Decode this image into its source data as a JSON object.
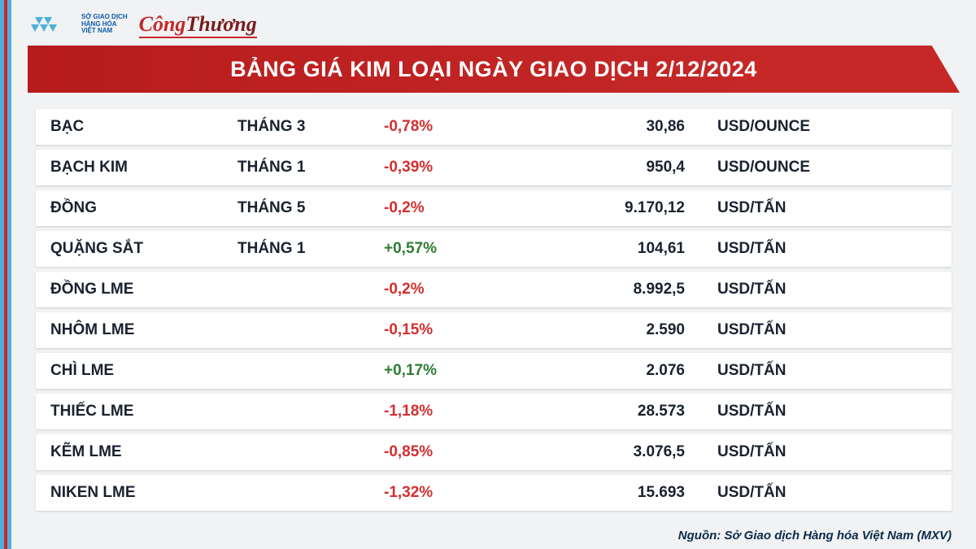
{
  "logos": {
    "mxv_lines": [
      "SỞ GIAO DỊCH",
      "HÀNG HÓA",
      "VIỆT NAM"
    ],
    "congthuong_part1": "Công",
    "congthuong_part2": "Thương"
  },
  "title": "BẢNG GIÁ KIM LOẠI NGÀY GIAO DỊCH 2/12/2024",
  "columns": [
    "name",
    "month",
    "change",
    "price",
    "unit"
  ],
  "colors": {
    "banner": "#c62828",
    "positive": "#2e7d32",
    "negative": "#d32f2f",
    "text": "#1a2230",
    "row_bg": "#ffffff",
    "page_bg": "#f0f2f4"
  },
  "rows": [
    {
      "name": "BẠC",
      "month": "THÁNG 3",
      "change": "-0,78%",
      "dir": "neg",
      "price": "30,86",
      "unit": "USD/OUNCE"
    },
    {
      "name": "BẠCH KIM",
      "month": "THÁNG 1",
      "change": "-0,39%",
      "dir": "neg",
      "price": "950,4",
      "unit": "USD/OUNCE"
    },
    {
      "name": "ĐỒNG",
      "month": "THÁNG 5",
      "change": "-0,2%",
      "dir": "neg",
      "price": "9.170,12",
      "unit": "USD/TẤN"
    },
    {
      "name": "QUẶNG SẮT",
      "month": "THÁNG 1",
      "change": "+0,57%",
      "dir": "pos",
      "price": "104,61",
      "unit": "USD/TẤN"
    },
    {
      "name": "ĐỒNG LME",
      "month": "",
      "change": "-0,2%",
      "dir": "neg",
      "price": "8.992,5",
      "unit": "USD/TẤN"
    },
    {
      "name": "NHÔM LME",
      "month": "",
      "change": "-0,15%",
      "dir": "neg",
      "price": "2.590",
      "unit": "USD/TẤN"
    },
    {
      "name": "CHÌ LME",
      "month": "",
      "change": "+0,17%",
      "dir": "pos",
      "price": "2.076",
      "unit": "USD/TẤN"
    },
    {
      "name": "THIẾC LME",
      "month": "",
      "change": "-1,18%",
      "dir": "neg",
      "price": "28.573",
      "unit": "USD/TẤN"
    },
    {
      "name": "KẼM LME",
      "month": "",
      "change": "-0,85%",
      "dir": "neg",
      "price": "3.076,5",
      "unit": "USD/TẤN"
    },
    {
      "name": "NIKEN LME",
      "month": "",
      "change": "-1,32%",
      "dir": "neg",
      "price": "15.693",
      "unit": "USD/TẤN"
    }
  ],
  "source": "Nguồn: Sở Giao dịch Hàng hóa Việt Nam (MXV)"
}
